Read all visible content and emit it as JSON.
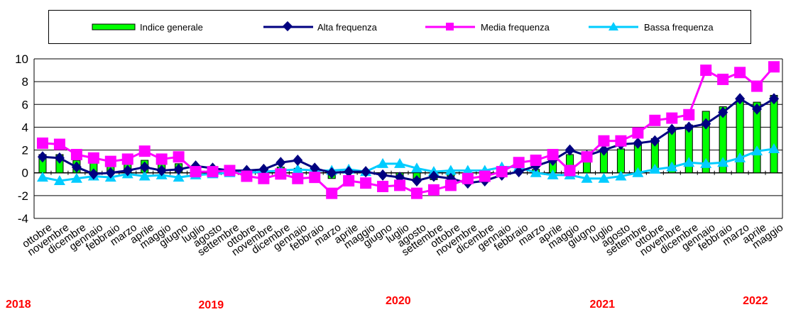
{
  "chart_data": {
    "type": "bar+line",
    "title": "",
    "xlabel": "",
    "ylabel": "",
    "ylim": [
      -4,
      10
    ],
    "yticks": [
      -4,
      -2,
      0,
      2,
      4,
      6,
      8,
      10
    ],
    "grid": true,
    "legend_position": "top",
    "categories": [
      "ottobre",
      "novembre",
      "dicembre",
      "gennaio",
      "febbraio",
      "marzo",
      "aprile",
      "maggio",
      "giugno",
      "luglio",
      "agosto",
      "settembre",
      "ottobre",
      "novembre",
      "dicembre",
      "gennaio",
      "febbraio",
      "marzo",
      "aprile",
      "maggio",
      "giugno",
      "luglio",
      "agosto",
      "settembre",
      "ottobre",
      "novembre",
      "dicembre",
      "gennaio",
      "febbraio",
      "marzo",
      "aprile",
      "maggio",
      "giugno",
      "luglio",
      "agosto",
      "settembre",
      "ottobre",
      "novembre",
      "dicembre",
      "gennaio",
      "febbraio",
      "marzo",
      "aprile",
      "maggio"
    ],
    "years": [
      {
        "label": "2018",
        "index": 0
      },
      {
        "label": "2019",
        "index": 10
      },
      {
        "label": "2020",
        "index": 21
      },
      {
        "label": "2021",
        "index": 33
      },
      {
        "label": "2022",
        "index": 42
      }
    ],
    "series": [
      {
        "name": "Indice generale",
        "kind": "bar",
        "color": "#00ff00",
        "values": [
          1.6,
          1.6,
          1.1,
          0.9,
          1.0,
          1.0,
          1.1,
          0.9,
          0.8,
          0.5,
          0.4,
          0.3,
          0.2,
          0.2,
          0.5,
          0.4,
          0.3,
          -0.5,
          0.0,
          -0.2,
          -0.2,
          -0.4,
          -0.5,
          -0.6,
          -0.3,
          -0.2,
          -0.1,
          0.2,
          0.3,
          0.3,
          1.1,
          1.6,
          1.3,
          1.9,
          2.1,
          2.6,
          3.0,
          3.8,
          4.2,
          5.4,
          5.8,
          6.5,
          6.2,
          6.8
        ]
      },
      {
        "name": "Alta frequenza",
        "kind": "line",
        "color": "#000080",
        "values": [
          1.4,
          1.3,
          0.5,
          -0.1,
          0.0,
          0.2,
          0.5,
          0.2,
          0.3,
          0.6,
          0.4,
          0.2,
          0.2,
          0.3,
          0.9,
          1.1,
          0.4,
          0.0,
          0.1,
          0.1,
          -0.2,
          -0.4,
          -0.7,
          -0.3,
          -0.5,
          -0.9,
          -0.7,
          -0.2,
          0.1,
          0.6,
          1.1,
          2.0,
          1.5,
          2.0,
          2.5,
          2.6,
          2.8,
          3.8,
          4.0,
          4.3,
          5.3,
          6.5,
          5.6,
          6.5
        ]
      },
      {
        "name": "Media frequenza",
        "kind": "line",
        "color": "#ff00ff",
        "values": [
          2.6,
          2.5,
          1.6,
          1.3,
          1.0,
          1.2,
          1.9,
          1.2,
          1.4,
          0.1,
          0.1,
          0.2,
          -0.3,
          -0.5,
          -0.1,
          -0.5,
          -0.4,
          -1.8,
          -0.7,
          -0.9,
          -1.2,
          -1.1,
          -1.8,
          -1.5,
          -1.1,
          -0.5,
          -0.3,
          0.1,
          0.9,
          1.1,
          1.6,
          0.2,
          1.4,
          2.8,
          2.8,
          3.5,
          4.6,
          4.8,
          5.1,
          9.0,
          8.2,
          8.8,
          7.6,
          9.3
        ]
      },
      {
        "name": "Bassa frequenza",
        "kind": "line",
        "color": "#00ccff",
        "values": [
          -0.4,
          -0.7,
          -0.5,
          -0.3,
          -0.4,
          -0.1,
          -0.3,
          -0.2,
          -0.4,
          -0.2,
          -0.1,
          0.0,
          0.0,
          0.1,
          0.2,
          0.3,
          0.2,
          0.2,
          0.3,
          0.1,
          0.8,
          0.8,
          0.4,
          0.1,
          0.2,
          0.2,
          0.2,
          0.5,
          0.5,
          0.0,
          -0.2,
          -0.2,
          -0.5,
          -0.5,
          -0.3,
          0.0,
          0.3,
          0.5,
          0.9,
          0.8,
          0.9,
          1.3,
          1.9,
          2.1
        ]
      }
    ]
  }
}
